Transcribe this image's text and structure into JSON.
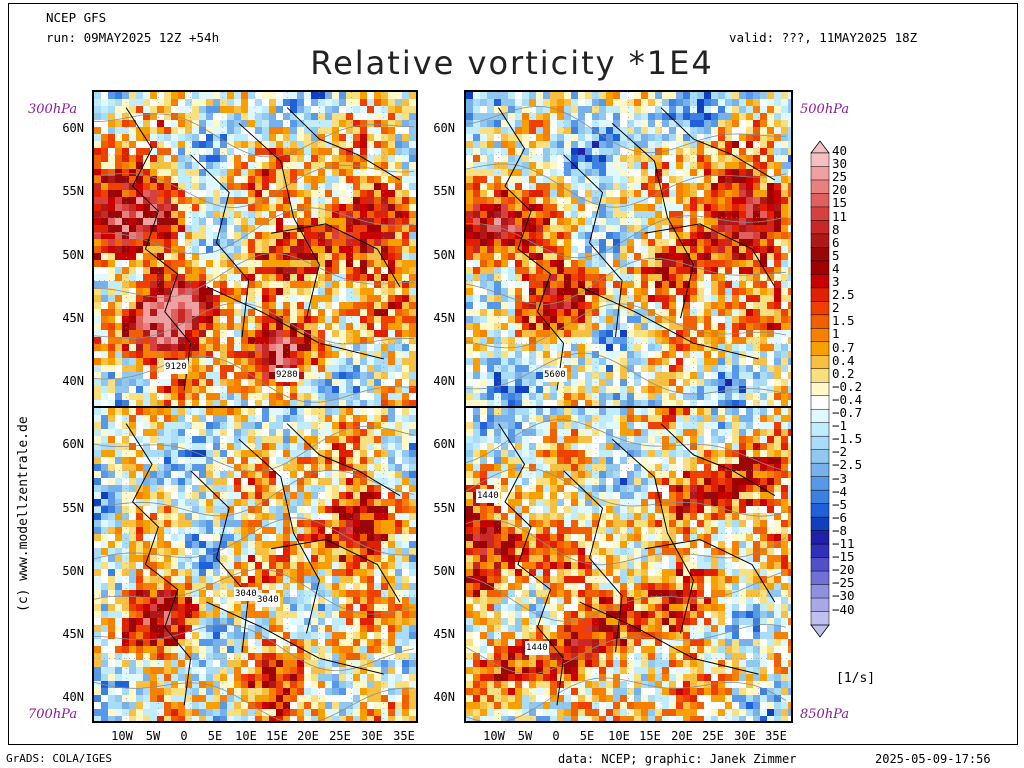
{
  "header": {
    "model": "NCEP GFS",
    "run": "run: 09MAY2025 12Z +54h",
    "valid": "valid: ???, 11MAY2025 18Z",
    "title": "Relative vorticity *1E4"
  },
  "panels": [
    {
      "level": "300hPa",
      "contours": [
        "9120",
        "9280"
      ]
    },
    {
      "level": "500hPa",
      "contours": [
        "5600"
      ]
    },
    {
      "level": "700hPa",
      "contours": [
        "3040",
        "3040"
      ]
    },
    {
      "level": "850hPa",
      "contours": [
        "1440",
        "1440"
      ]
    }
  ],
  "axes": {
    "lat_labels": [
      "60N",
      "55N",
      "50N",
      "45N",
      "40N"
    ],
    "lon_labels": [
      "10W",
      "5W",
      "0",
      "5E",
      "10E",
      "15E",
      "20E",
      "25E",
      "30E",
      "35E"
    ]
  },
  "colorbar": {
    "labels": [
      "40",
      "30",
      "25",
      "20",
      "15",
      "11",
      "8",
      "6",
      "5",
      "4",
      "3",
      "2.5",
      "2",
      "1.5",
      "1",
      "0.7",
      "0.4",
      "0.2",
      "−0.2",
      "−0.4",
      "−0.7",
      "−1",
      "−1.5",
      "−2",
      "−2.5",
      "−3",
      "−4",
      "−5",
      "−6",
      "−8",
      "−11",
      "−15",
      "−20",
      "−25",
      "−30",
      "−40"
    ],
    "colors": [
      "#f7c0c0",
      "#f0a0a0",
      "#e88080",
      "#e06060",
      "#d84040",
      "#c82828",
      "#b01818",
      "#980808",
      "#a00000",
      "#c80000",
      "#e02000",
      "#f04000",
      "#f06000",
      "#f88000",
      "#f8a000",
      "#f8c040",
      "#f8e080",
      "#fff8c8",
      "#ffffff",
      "#e0f8ff",
      "#c0ecfc",
      "#a8dcf8",
      "#90c8f0",
      "#78b0ec",
      "#5898e8",
      "#3c80e0",
      "#2060d8",
      "#1040c0",
      "#2020a8",
      "#3030b8",
      "#5050c8",
      "#7070d8",
      "#9090e0",
      "#a8a8e8",
      "#c0c0f0"
    ],
    "units": "[1/s]"
  },
  "footer": {
    "software": "GrADS: COLA/IGES",
    "source": "data: NCEP; graphic: Janek Zimmer",
    "timestamp": "2025-05-09-17:56"
  },
  "credit": "(c) www.modellzentrale.de"
}
